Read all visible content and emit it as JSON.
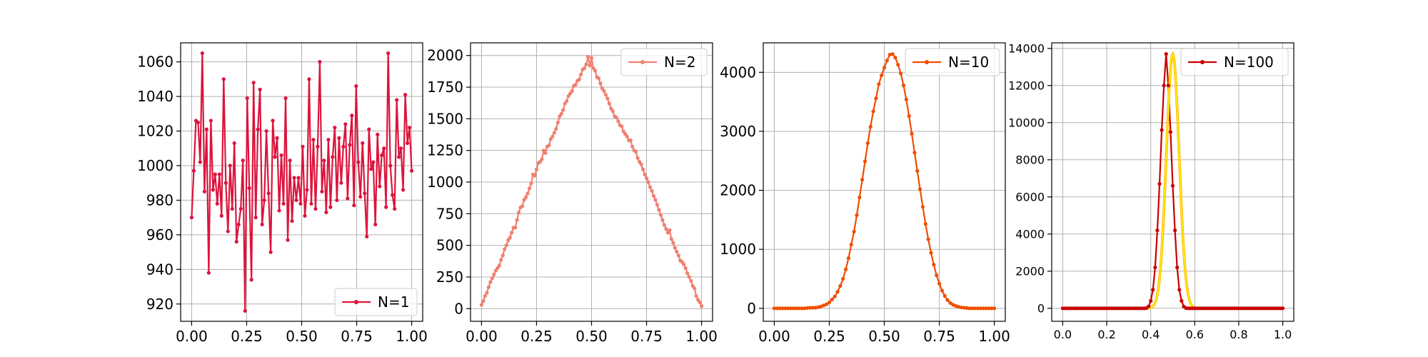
{
  "chart_data": [
    {
      "type": "line",
      "xlim": [
        -0.05,
        1.05
      ],
      "ylim": [
        910,
        1071
      ],
      "xticks": [
        0.0,
        0.25,
        0.5,
        0.75,
        1.0
      ],
      "xtick_labels": [
        "0.00",
        "0.25",
        "0.50",
        "0.75",
        "1.00"
      ],
      "yticks": [
        920,
        940,
        960,
        980,
        1000,
        1020,
        1040,
        1060
      ],
      "ytick_labels": [
        "920",
        "940",
        "960",
        "980",
        "1000",
        "1020",
        "1040",
        "1060"
      ],
      "grid": true,
      "legend_position": "lower right",
      "series": [
        {
          "name": "N=1",
          "color": "#dc143c",
          "x_start": 0.0,
          "x_end": 1.0,
          "values": [
            970,
            997,
            1026,
            1025,
            1002,
            1065,
            985,
            1021,
            938,
            1026,
            986,
            995,
            978,
            995,
            971,
            1050,
            990,
            962,
            1000,
            975,
            1013,
            956,
            966,
            975,
            1003,
            916,
            1039,
            987,
            934,
            1048,
            970,
            1021,
            1044,
            966,
            980,
            1020,
            984,
            950,
            1026,
            1005,
            1016,
            974,
            1006,
            978,
            1039,
            957,
            1003,
            968,
            993,
            980,
            993,
            978,
            1011,
            971,
            986,
            1050,
            978,
            1015,
            975,
            1011,
            1060,
            985,
            1003,
            973,
            1015,
            976,
            1005,
            1022,
            980,
            1016,
            990,
            1011,
            1024,
            981,
            1012,
            1029,
            977,
            1046,
            1002,
            982,
            1013,
            984,
            959,
            1021,
            998,
            1002,
            966,
            1018,
            988,
            1006,
            1010,
            976,
            1065,
            1000,
            983,
            975,
            1038,
            1005,
            1010,
            986,
            1041,
            1013,
            1022,
            997
          ]
        }
      ]
    },
    {
      "type": "line",
      "xlim": [
        -0.05,
        1.05
      ],
      "ylim": [
        -100,
        2100
      ],
      "xticks": [
        0.0,
        0.25,
        0.5,
        0.75,
        1.0
      ],
      "xtick_labels": [
        "0.00",
        "0.25",
        "0.50",
        "0.75",
        "1.00"
      ],
      "yticks": [
        0,
        250,
        500,
        750,
        1000,
        1250,
        1500,
        1750,
        2000
      ],
      "ytick_labels": [
        "0",
        "250",
        "500",
        "750",
        "1000",
        "1250",
        "1500",
        "1750",
        "2000"
      ],
      "grid": true,
      "legend_position": "upper right",
      "series": [
        {
          "name": "N=2",
          "color": "#f08070",
          "x_start": 0.0,
          "x_end": 1.0,
          "values": [
            30,
            60,
            100,
            125,
            170,
            210,
            240,
            270,
            300,
            320,
            340,
            385,
            420,
            470,
            500,
            540,
            560,
            600,
            640,
            640,
            700,
            760,
            800,
            810,
            860,
            880,
            910,
            950,
            990,
            1060,
            1050,
            1100,
            1150,
            1160,
            1180,
            1250,
            1230,
            1280,
            1290,
            1340,
            1360,
            1390,
            1420,
            1470,
            1520,
            1540,
            1570,
            1620,
            1640,
            1680,
            1700,
            1720,
            1760,
            1770,
            1800,
            1810,
            1850,
            1890,
            1900,
            1930,
            1990,
            1920,
            1980,
            1900,
            1880,
            1830,
            1820,
            1780,
            1740,
            1720,
            1690,
            1660,
            1620,
            1580,
            1560,
            1520,
            1510,
            1480,
            1450,
            1440,
            1400,
            1380,
            1360,
            1330,
            1330,
            1280,
            1250,
            1240,
            1190,
            1160,
            1140,
            1100,
            1060,
            1030,
            1000,
            960,
            930,
            890,
            860,
            820,
            780,
            740,
            700,
            660,
            630,
            600,
            620,
            550,
            520,
            480,
            450,
            420,
            380,
            370,
            350,
            320,
            280,
            250,
            220,
            180,
            160,
            100,
            70,
            50,
            20
          ]
        }
      ]
    },
    {
      "type": "line",
      "xlim": [
        -0.05,
        1.05
      ],
      "ylim": [
        -220,
        4500
      ],
      "xticks": [
        0.0,
        0.25,
        0.5,
        0.75,
        1.0
      ],
      "xtick_labels": [
        "0.00",
        "0.25",
        "0.50",
        "0.75",
        "1.00"
      ],
      "yticks": [
        0,
        1000,
        2000,
        3000,
        4000
      ],
      "ytick_labels": [
        "0",
        "1000",
        "2000",
        "3000",
        "4000"
      ],
      "grid": true,
      "legend_position": "upper right",
      "series": [
        {
          "name": "N=10",
          "color": "#f04e00",
          "x_start": 0.0,
          "x_end": 1.0,
          "values": [
            0,
            0,
            0,
            0,
            0,
            0,
            0,
            0,
            0,
            0,
            0,
            0,
            5,
            10,
            10,
            10,
            20,
            30,
            50,
            70,
            100,
            150,
            200,
            280,
            380,
            500,
            660,
            850,
            1080,
            1300,
            1580,
            1880,
            2180,
            2490,
            2800,
            3080,
            3340,
            3560,
            3800,
            3950,
            4080,
            4200,
            4300,
            4310,
            4250,
            4130,
            3980,
            3780,
            3540,
            3260,
            2960,
            2640,
            2330,
            2020,
            1720,
            1430,
            1170,
            940,
            740,
            560,
            420,
            300,
            210,
            140,
            90,
            60,
            40,
            25,
            15,
            10,
            5,
            0,
            0,
            0,
            0,
            0,
            0,
            0,
            0,
            0,
            0
          ]
        }
      ]
    },
    {
      "type": "line",
      "xlim": [
        -0.05,
        1.05
      ],
      "ylim": [
        -700,
        14300
      ],
      "xticks": [
        0.0,
        0.2,
        0.4,
        0.6,
        0.8,
        1.0
      ],
      "xtick_labels": [
        "0.0",
        "0.2",
        "0.4",
        "0.6",
        "0.8",
        "1.0"
      ],
      "yticks": [
        0,
        2000,
        4000,
        6000,
        8000,
        10000,
        12000,
        14000
      ],
      "ytick_labels": [
        "0",
        "2000",
        "4000",
        "6000",
        "8000",
        "10000",
        "12000",
        "14000"
      ],
      "grid": true,
      "legend_position": "upper right",
      "series": [
        {
          "name": "N=100",
          "color": "#c80000",
          "x_start": 0.0,
          "x_end": 1.0,
          "values": [
            0,
            0,
            0,
            0,
            0,
            0,
            0,
            0,
            0,
            0,
            0,
            0,
            0,
            0,
            0,
            0,
            0,
            0,
            0,
            0,
            0,
            0,
            0,
            0,
            0,
            0,
            0,
            0,
            0,
            0,
            0,
            0,
            0,
            0,
            0,
            0,
            0,
            0,
            10,
            100,
            400,
            1000,
            2200,
            4200,
            6700,
            9600,
            12000,
            13700,
            12000,
            9500,
            6600,
            4200,
            2200,
            1000,
            400,
            100,
            10,
            0,
            0,
            0,
            0,
            0,
            0,
            0,
            0,
            0,
            0,
            0,
            0,
            0,
            0,
            0,
            0,
            0,
            0,
            0,
            0,
            0,
            0,
            0,
            0,
            0,
            0,
            0,
            0,
            0,
            0,
            0,
            0,
            0,
            0,
            0,
            0,
            0,
            0,
            0,
            0,
            0,
            0,
            0,
            0
          ]
        },
        {
          "color": "#ffe600",
          "secondary_color": "#ff9900",
          "x_start": 0.0,
          "x_end": 1.0,
          "mean": 0.5,
          "std": 0.029,
          "peak": 13700,
          "role": "overlay curve"
        }
      ]
    }
  ]
}
